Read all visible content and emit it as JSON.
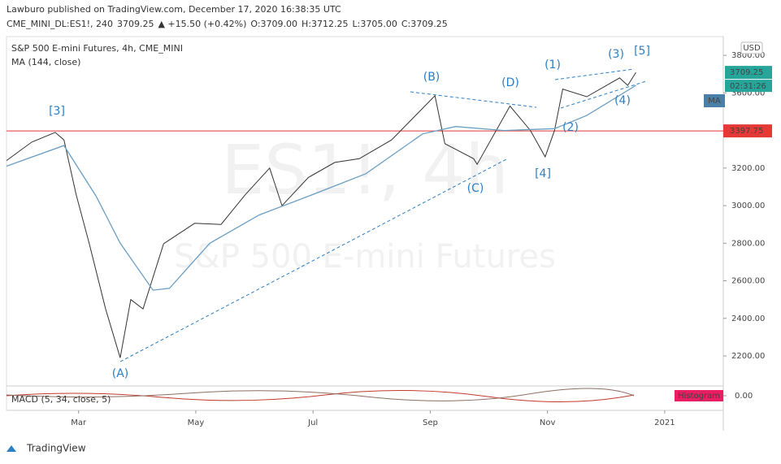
{
  "header": {
    "publisher": "Lawburo published on TradingView.com, December 17, 2020 16:38:35 UTC",
    "symbol": "CME_MINI_DL:ES1!, 240",
    "last": "3709.25",
    "change": "▲ +15.50 (+0.42%)",
    "ohlc": [
      {
        "label": "O:",
        "value": "3709.00"
      },
      {
        "label": "H:",
        "value": "3712.25"
      },
      {
        "label": "L:",
        "value": "3705.00"
      },
      {
        "label": "C:",
        "value": "3709.25"
      }
    ]
  },
  "chart_data": {
    "type": "line",
    "legend": [
      "S&P 500 E-mini Futures, 4h, CME_MINI",
      "MA (144, close)"
    ],
    "watermark": [
      "ES1!, 4h",
      "S&P 500 E-mini Futures"
    ],
    "currency": "USD",
    "xlim": [
      1.77,
      14.0
    ],
    "xticks": [
      {
        "value": 3,
        "label": "Mar"
      },
      {
        "value": 5,
        "label": "May"
      },
      {
        "value": 7,
        "label": "Jul"
      },
      {
        "value": 9,
        "label": "Sep"
      },
      {
        "value": 11,
        "label": "Nov"
      },
      {
        "value": 13,
        "label": "2021"
      }
    ],
    "ylim": [
      2040,
      3900
    ],
    "yticks": [
      {
        "value": 2200,
        "label": "2200.00"
      },
      {
        "value": 2400,
        "label": "2400.00"
      },
      {
        "value": 2600,
        "label": "2600.00"
      },
      {
        "value": 2800,
        "label": "2800.00"
      },
      {
        "value": 3000,
        "label": "3000.00"
      },
      {
        "value": 3200,
        "label": "3200.00"
      },
      {
        "value": 3400,
        "label": "3400.00"
      },
      {
        "value": 3600,
        "label": "3600.00"
      },
      {
        "value": 3800,
        "label": "3800.00"
      }
    ],
    "series": [
      {
        "name": "ES1!",
        "color": "#333333",
        "x": [
          1.77,
          2.2,
          2.6,
          2.75,
          2.96,
          3.18,
          3.46,
          3.71,
          3.89,
          4.1,
          4.45,
          4.98,
          5.43,
          5.84,
          6.26,
          6.47,
          6.92,
          7.37,
          7.79,
          8.34,
          9.08,
          9.25,
          9.74,
          9.8,
          10.36,
          10.71,
          10.96,
          11.12,
          11.26,
          11.67,
          12.23,
          12.37,
          12.51
        ],
        "values": [
          3240,
          3338,
          3390,
          3350,
          3057,
          2800,
          2451,
          2190,
          2500,
          2450,
          2797,
          2906,
          2900,
          3057,
          3200,
          3000,
          3150,
          3230,
          3250,
          3350,
          3585,
          3330,
          3250,
          3220,
          3530,
          3400,
          3260,
          3400,
          3620,
          3580,
          3680,
          3640,
          3709.25
        ]
      },
      {
        "name": "MA (144, close)",
        "color": "#6a9fc4",
        "x": [
          1.77,
          2.75,
          3.3,
          3.71,
          4.27,
          4.55,
          5.24,
          6.08,
          6.92,
          7.9,
          8.87,
          9.43,
          10.26,
          11.12,
          11.67,
          12.51
        ],
        "values": [
          3210,
          3320,
          3050,
          2800,
          2550,
          2560,
          2800,
          2950,
          3050,
          3170,
          3382,
          3421,
          3400,
          3410,
          3480,
          3640
        ]
      }
    ],
    "hline": {
      "value": 3397.75,
      "label": "3397.75",
      "color": "#e53935"
    },
    "last_price": {
      "value": 3709.25,
      "label": "3709.25",
      "countdown": "02:31:26"
    },
    "ma_tag": "MA",
    "annotations": [
      "[3]",
      "(A)",
      "(B)",
      "(C)",
      "(D)",
      "[4]",
      "(1)",
      "(2)",
      "(3)",
      "[5]",
      "(4)"
    ],
    "macd": {
      "title": "MACD (5, 34, close, 5)",
      "zero": {
        "value": 0,
        "label": "0.00"
      },
      "tag": "Histogram"
    }
  },
  "footer": "TradingView"
}
